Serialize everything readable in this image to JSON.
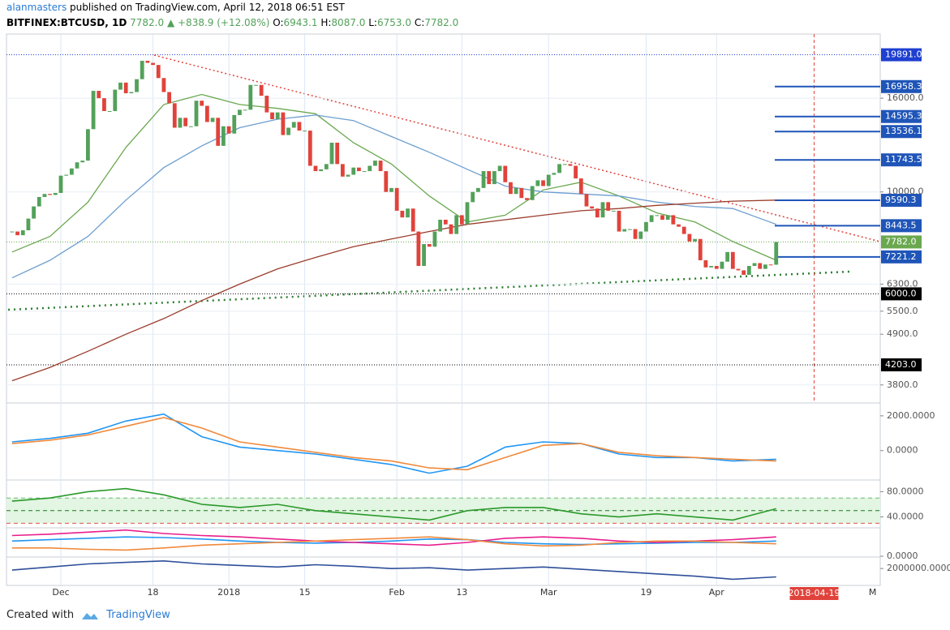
{
  "header": {
    "user": "alanmasters",
    "published": "published on TradingView.com, April 12, 2018 06:51 EST",
    "symbol": "BITFINEX:BTCUSD, 1D",
    "last": "7782.0",
    "change": "+838.9 (+12.08%)",
    "open_label": "O:",
    "open": "6943.1",
    "high_label": "H:",
    "high": "8087.0",
    "low_label": "L:",
    "low": "6753.0",
    "close_label": "C:",
    "close": "7782.0"
  },
  "footer": {
    "created": "Created with",
    "brand": "TradingView"
  },
  "chart_data": [
    {
      "type": "candlestick",
      "log_scale": true,
      "grid": true,
      "up_color": "#53a15a",
      "down_color": "#e0433b",
      "categories": [
        null,
        null,
        null,
        null,
        null,
        null,
        null,
        null,
        null,
        "Dec",
        null,
        null,
        null,
        null,
        null,
        null,
        null,
        null,
        null,
        null,
        null,
        null,
        null,
        null,
        null,
        null,
        "18",
        null,
        null,
        null,
        null,
        null,
        null,
        null,
        null,
        null,
        null,
        null,
        null,
        null,
        "2018",
        null,
        null,
        null,
        null,
        null,
        null,
        null,
        null,
        null,
        null,
        null,
        null,
        null,
        "15",
        null,
        null,
        null,
        null,
        null,
        null,
        null,
        null,
        null,
        null,
        null,
        null,
        null,
        null,
        null,
        null,
        "Feb",
        null,
        null,
        null,
        null,
        null,
        null,
        null,
        null,
        null,
        null,
        null,
        "13",
        null,
        null,
        null,
        null,
        null,
        null,
        null,
        null,
        null,
        null,
        null,
        null,
        null,
        null,
        null,
        "Mar",
        null,
        null,
        null,
        null,
        null,
        null,
        null,
        null,
        null,
        null,
        null,
        null,
        null,
        null,
        null,
        null,
        null,
        "19",
        null,
        null,
        null,
        null,
        null,
        null,
        null,
        null,
        null,
        null,
        null,
        null,
        "Apr",
        null,
        null,
        null,
        null,
        null,
        null,
        null,
        null,
        null,
        null,
        null
      ],
      "values": [
        8200,
        8050,
        8250,
        8750,
        9300,
        9750,
        9900,
        9850,
        9950,
        10850,
        10900,
        11250,
        11600,
        11700,
        13700,
        16600,
        16000,
        15000,
        15000,
        16700,
        17300,
        16400,
        16500,
        17600,
        19300,
        19100,
        18900,
        17700,
        16500,
        15600,
        13800,
        14500,
        13900,
        13900,
        15800,
        15400,
        14200,
        14500,
        12600,
        13900,
        13400,
        14700,
        15100,
        15100,
        17100,
        17100,
        16200,
        14900,
        14400,
        14900,
        13300,
        13800,
        14200,
        13600,
        13600,
        11400,
        11100,
        11200,
        11500,
        12800,
        11500,
        10800,
        10900,
        11300,
        11100,
        11100,
        11400,
        11700,
        11100,
        10000,
        10200,
        9100,
        8800,
        9200,
        8200,
        6900,
        7700,
        7600,
        8200,
        8700,
        8500,
        8100,
        8900,
        8500,
        9500,
        10000,
        10200,
        11100,
        10400,
        11100,
        11400,
        10500,
        9900,
        10200,
        9700,
        9600,
        10300,
        10600,
        10300,
        10900,
        11000,
        11500,
        11500,
        11400,
        10700,
        9900,
        9300,
        9200,
        8800,
        9500,
        9100,
        9100,
        8200,
        8300,
        8300,
        7900,
        8200,
        8600,
        8900,
        8900,
        8700,
        8900,
        8500,
        8400,
        8100,
        7800,
        7900,
        7100,
        6850,
        6900,
        6800,
        7050,
        7400,
        6800,
        6750,
        6600,
        6900,
        7000,
        6800,
        6950,
        6943.1,
        7782
      ],
      "ylim": [
        3500,
        21800
      ],
      "yticks": [
        {
          "value": 16000,
          "label": "16000.0"
        },
        {
          "value": 10000,
          "label": "10000.0"
        },
        {
          "value": 6300,
          "label": "6300.0"
        },
        {
          "value": 5500,
          "label": "5500.0"
        },
        {
          "value": 4900,
          "label": "4900.0"
        },
        {
          "value": 3800,
          "label": "3800.0"
        }
      ],
      "levels": [
        {
          "value": 19891,
          "label": "19891.0",
          "color": "#1e3fd0",
          "style": "dotted"
        },
        {
          "value": 16958.3,
          "label": "16958.3",
          "color": "#1f55b8",
          "style": "segment"
        },
        {
          "value": 14595.3,
          "label": "14595.3",
          "color": "#1f55b8",
          "style": "segment"
        },
        {
          "value": 13536.1,
          "label": "13536.1",
          "color": "#1f55b8",
          "style": "segment"
        },
        {
          "value": 11743.5,
          "label": "11743.5",
          "color": "#1f55b8",
          "style": "segment"
        },
        {
          "value": 9590.3,
          "label": "9590.3",
          "color": "#1f55b8",
          "style": "segment"
        },
        {
          "value": 8443.5,
          "label": "8443.5",
          "color": "#1f55b8",
          "style": "segment"
        },
        {
          "value": 7782,
          "label": "7782.0",
          "color": "#6aa84f",
          "style": "dotted"
        },
        {
          "value": 7221.2,
          "label": "7221.2",
          "color": "#1f55b8",
          "style": "segment"
        },
        {
          "value": 6000,
          "label": "6000.0",
          "color": "#000000",
          "style": "dotted"
        },
        {
          "value": 4203,
          "label": "4203.0",
          "color": "#000000",
          "style": "dotted"
        }
      ],
      "series": [
        {
          "color": "#6aa84f",
          "x": [
            0,
            7,
            14,
            21,
            28,
            35,
            42,
            49,
            56,
            63,
            70,
            77,
            84,
            91,
            98,
            105,
            112,
            119,
            126,
            133,
            141
          ],
          "values": [
            7400,
            8000,
            9500,
            12500,
            15500,
            16300,
            15500,
            15200,
            14800,
            12800,
            11500,
            9800,
            8600,
            8900,
            10100,
            10500,
            9800,
            9000,
            8600,
            7800,
            7100
          ]
        },
        {
          "color": "#6d9ecf",
          "x": [
            0,
            7,
            14,
            21,
            28,
            35,
            42,
            49,
            56,
            63,
            70,
            77,
            84,
            91,
            98,
            105,
            112,
            119,
            126,
            133,
            141
          ],
          "values": [
            6500,
            7100,
            8000,
            9600,
            11300,
            12600,
            13800,
            14400,
            14700,
            14300,
            13200,
            12200,
            11200,
            10300,
            10000,
            9900,
            9800,
            9500,
            9300,
            9200,
            8500
          ]
        },
        {
          "color": "#9a3d2c",
          "x": [
            0,
            7,
            14,
            21,
            28,
            35,
            42,
            49,
            56,
            63,
            70,
            77,
            84,
            91,
            98,
            105,
            112,
            119,
            126,
            133,
            141
          ],
          "values": [
            3880,
            4150,
            4500,
            4900,
            5300,
            5800,
            6300,
            6800,
            7200,
            7600,
            7900,
            8200,
            8500,
            8700,
            8900,
            9100,
            9200,
            9350,
            9450,
            9550,
            9600
          ]
        }
      ],
      "marker_date": "2018-04-19",
      "next_month": "M"
    },
    {
      "type": "macd",
      "ylim": [
        -1600,
        2600
      ],
      "yticks": [
        {
          "value": 2000,
          "label": "2000.0000"
        },
        {
          "value": 0,
          "label": "0.0000"
        }
      ],
      "x": [
        0,
        7,
        14,
        21,
        28,
        35,
        42,
        49,
        56,
        63,
        70,
        77,
        84,
        91,
        98,
        105,
        112,
        119,
        126,
        133,
        141
      ],
      "series": [
        {
          "color": "#2196f3",
          "values": [
            500,
            700,
            1000,
            1700,
            2100,
            800,
            200,
            0,
            -200,
            -500,
            -800,
            -1300,
            -900,
            200,
            500,
            400,
            -200,
            -400,
            -400,
            -600,
            -500
          ]
        },
        {
          "color": "#f08a3c",
          "values": [
            400,
            600,
            900,
            1400,
            1900,
            1300,
            500,
            200,
            -100,
            -400,
            -600,
            -1000,
            -1100,
            -400,
            300,
            400,
            -100,
            -300,
            -400,
            -500,
            -600
          ]
        }
      ]
    },
    {
      "type": "rsi",
      "ylim": [
        24,
        96
      ],
      "yticks": [
        {
          "value": 80,
          "label": "80.0000"
        },
        {
          "value": 40,
          "label": "40.0000"
        }
      ],
      "bands": [
        70,
        50,
        30
      ],
      "band_colors": [
        "#66bb6a",
        "#1b7a1b",
        "#e0554b"
      ],
      "band_fill": "#e3f5e3",
      "x": [
        0,
        7,
        14,
        21,
        28,
        35,
        42,
        49,
        56,
        63,
        70,
        77,
        84,
        91,
        98,
        105,
        112,
        119,
        126,
        133,
        141
      ],
      "series": [
        {
          "color": "#2a9a2a",
          "values": [
            65,
            70,
            80,
            85,
            75,
            60,
            55,
            60,
            50,
            45,
            40,
            35,
            50,
            55,
            55,
            45,
            40,
            45,
            40,
            35,
            53
          ]
        }
      ]
    },
    {
      "type": "dmi",
      "ylim": [
        0,
        40
      ],
      "yticks": [
        {
          "value": 0,
          "label": "0.0000"
        }
      ],
      "x": [
        0,
        7,
        14,
        21,
        28,
        35,
        42,
        49,
        56,
        63,
        70,
        77,
        84,
        91,
        98,
        105,
        112,
        119,
        126,
        133,
        141
      ],
      "series": [
        {
          "color": "#2196f3",
          "values": [
            22,
            24,
            26,
            28,
            27,
            25,
            22,
            20,
            19,
            20,
            22,
            25,
            24,
            20,
            18,
            17,
            18,
            19,
            20,
            20,
            22
          ]
        },
        {
          "color": "#e91e8c",
          "values": [
            30,
            32,
            35,
            38,
            33,
            30,
            28,
            25,
            22,
            20,
            18,
            16,
            20,
            26,
            28,
            26,
            22,
            20,
            22,
            24,
            28
          ]
        },
        {
          "color": "#f08a3c",
          "values": [
            12,
            12,
            10,
            9,
            12,
            16,
            18,
            20,
            22,
            24,
            26,
            28,
            24,
            18,
            15,
            16,
            20,
            22,
            22,
            20,
            18
          ]
        }
      ]
    },
    {
      "type": "line",
      "ylim": [
        0,
        3400000
      ],
      "yticks": [
        {
          "value": 2000000,
          "label": "2000000.0000"
        }
      ],
      "x": [
        0,
        7,
        14,
        21,
        28,
        35,
        42,
        49,
        56,
        63,
        70,
        77,
        84,
        91,
        98,
        105,
        112,
        119,
        126,
        133,
        141
      ],
      "series": [
        {
          "color": "#2e4f9a",
          "values": [
            1800000,
            2200000,
            2600000,
            2800000,
            3000000,
            2600000,
            2400000,
            2200000,
            2500000,
            2300000,
            2000000,
            2100000,
            1800000,
            2000000,
            2200000,
            1900000,
            1600000,
            1300000,
            1000000,
            600000,
            900000
          ]
        }
      ]
    }
  ]
}
